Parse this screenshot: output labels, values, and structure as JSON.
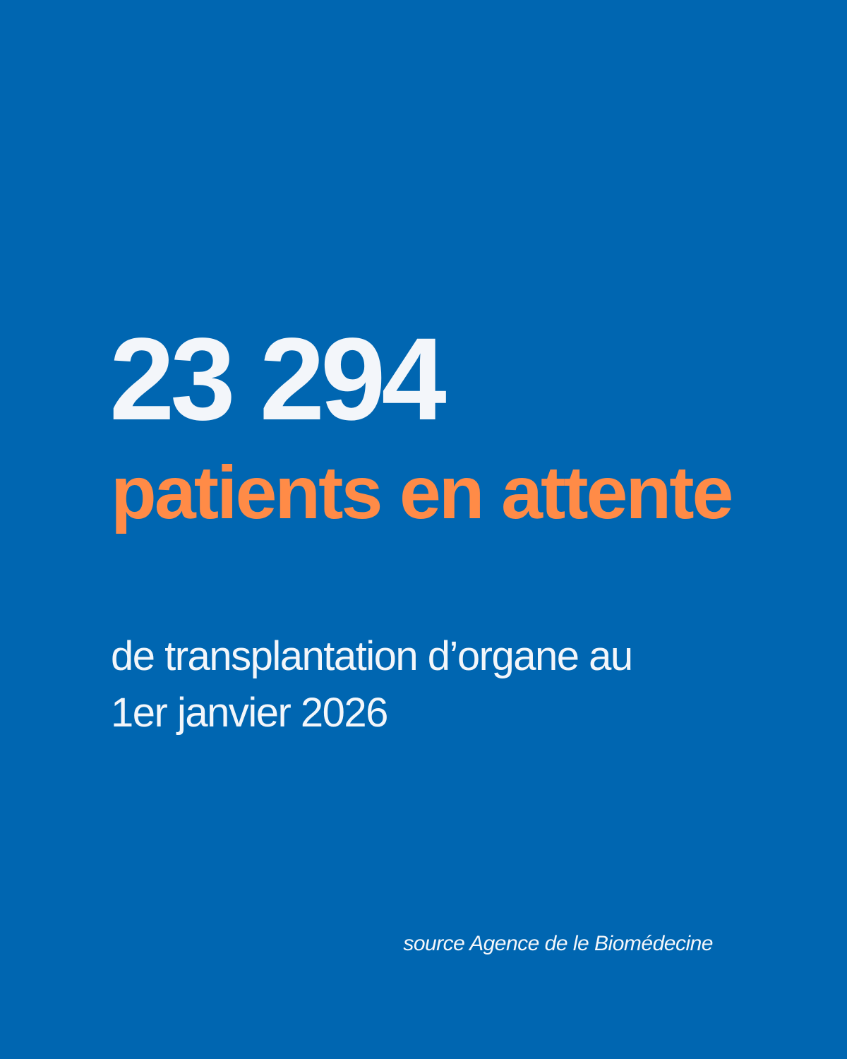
{
  "headline_number": "23 294",
  "headline_label": "patients en attente",
  "subtitle_line1": "de transplantation d’organe au",
  "subtitle_line2": "1er janvier 2026",
  "source": "source Agence de le Biomédecine",
  "colors": {
    "background": "#0066b1",
    "accent": "#ff8b47",
    "text": "#f3f6fa"
  }
}
